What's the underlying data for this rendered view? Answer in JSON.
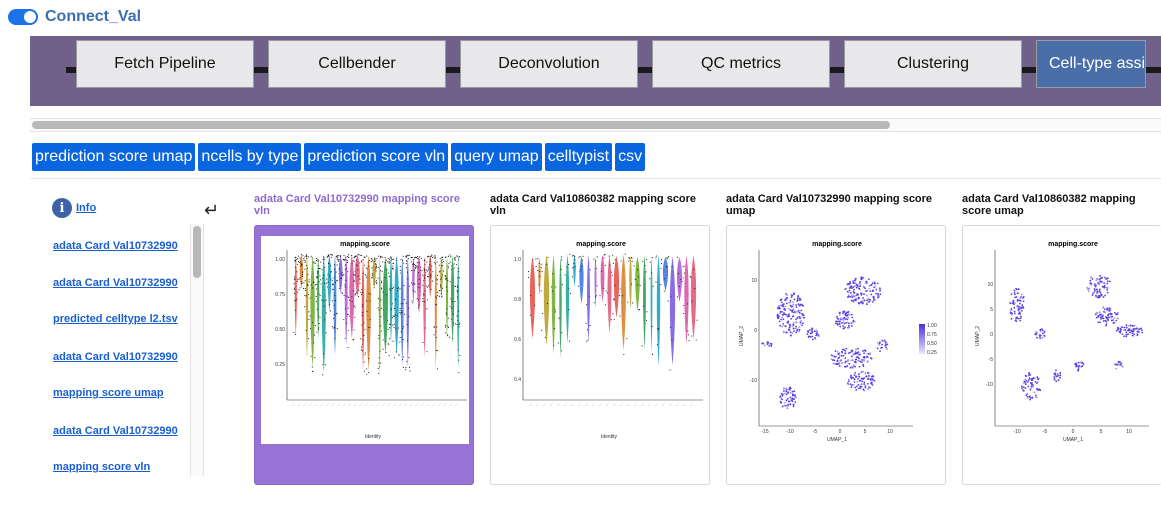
{
  "app": {
    "title": "Connect_Val"
  },
  "pipeline": {
    "steps": [
      {
        "label": "Fetch Pipeline"
      },
      {
        "label": "Cellbender"
      },
      {
        "label": "Deconvolution"
      },
      {
        "label": "QC metrics"
      },
      {
        "label": "Clustering"
      },
      {
        "label": "Cell-type assi",
        "active": true
      }
    ]
  },
  "tabs": [
    "prediction score umap",
    "ncells by type",
    "prediction score vln",
    "query umap",
    "celltypist",
    "csv"
  ],
  "sidebar": {
    "info_label": "Info",
    "info_icon": "info-icon",
    "return_icon": "return-arrow-icon",
    "links": [
      "adata Card Val10732990",
      "adata Card Val10732990",
      "predicted celltype l2.tsv",
      "adata Card Val10732990",
      "mapping score umap",
      "adata Card Val10732990",
      "mapping score vln"
    ]
  },
  "cards": [
    {
      "title": "adata Card Val10732990 mapping score vln",
      "plot_title": "mapping.score",
      "xlabel": "Identity",
      "kind": "violin",
      "active": true
    },
    {
      "title": "adata Card Val10860382 mapping score vln",
      "plot_title": "mapping.score",
      "xlabel": "Identity",
      "kind": "violin"
    },
    {
      "title": "adata Card Val10732990 mapping score umap",
      "plot_title": "mapping.score",
      "xlabel": "UMAP_1",
      "ylabel": "UMAP_2",
      "kind": "umap"
    },
    {
      "title": "adata Card Val10860382 mapping score umap",
      "plot_title": "mapping.score",
      "xlabel": "UMAP_1",
      "ylabel": "UMAP_2",
      "kind": "umap"
    }
  ],
  "chart_data": [
    {
      "type": "scatter",
      "title": "mapping.score",
      "xlabel": "Identity",
      "ylabel": "",
      "y_ticks": [
        "1.00",
        "0.75",
        "0.50",
        "0.25"
      ]
    },
    {
      "type": "scatter",
      "title": "mapping.score",
      "xlabel": "Identity",
      "ylabel": "",
      "y_ticks": [
        "1.0",
        "0.8",
        "0.6",
        "0.4"
      ]
    },
    {
      "type": "scatter",
      "title": "mapping.score",
      "xlabel": "UMAP_1",
      "ylabel": "UMAP_2",
      "x_ticks": [
        "-15",
        "-10",
        "-5",
        "0",
        "5",
        "10"
      ],
      "y_ticks": [
        "10",
        "0",
        "-10"
      ],
      "legend_ticks": [
        "1.00",
        "0.75",
        "0.50",
        "0.25"
      ]
    },
    {
      "type": "scatter",
      "title": "mapping.score",
      "xlabel": "UMAP_1",
      "ylabel": "UMAP_2",
      "x_ticks": [
        "-10",
        "-5",
        "0",
        "5",
        "10"
      ],
      "y_ticks": [
        "10",
        "5",
        "0",
        "-5",
        "-10"
      ]
    }
  ],
  "colors": {
    "accent": "#0a66e0",
    "pipeline_bg": "#6f6189",
    "active_step": "#4a6fa8",
    "active_card": "#9673d4",
    "umap_point": "#5b3fe0"
  }
}
